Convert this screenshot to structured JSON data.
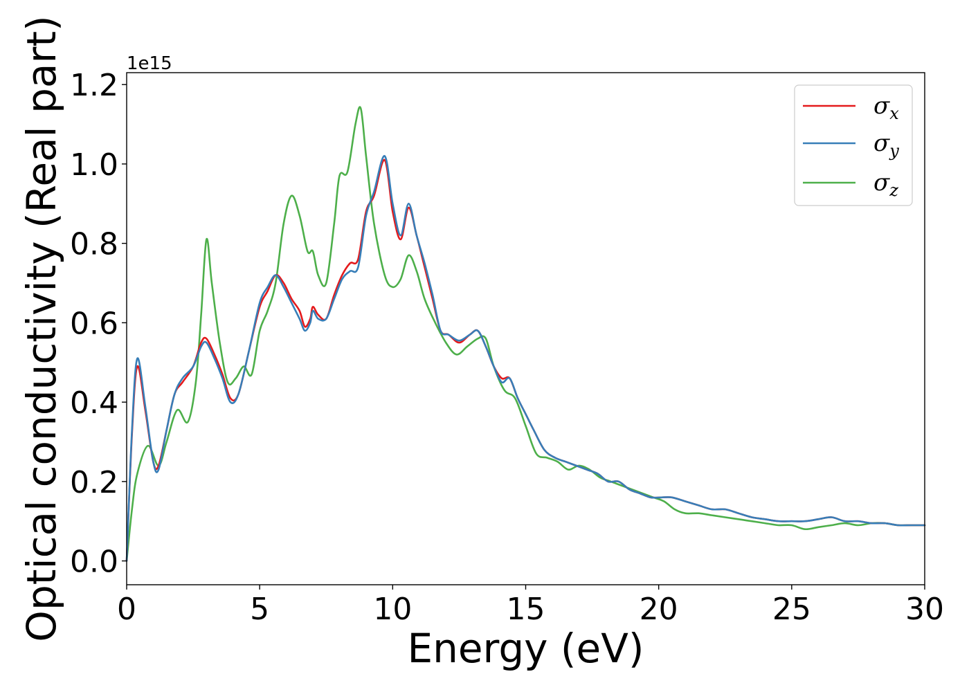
{
  "chart_data": {
    "type": "line",
    "title": "",
    "xlabel": "Energy (eV)",
    "ylabel": "Optical conductivity (Real part)",
    "y_offset_text": "1e15",
    "xlim": [
      0,
      30
    ],
    "ylim": [
      -0.06,
      1.23
    ],
    "x_ticks": [
      0,
      5,
      10,
      15,
      20,
      25,
      30
    ],
    "y_ticks": [
      0.0,
      0.2,
      0.4,
      0.6,
      0.8,
      1.0,
      1.2
    ],
    "x_tick_labels": [
      "0",
      "5",
      "10",
      "15",
      "20",
      "25",
      "30"
    ],
    "y_tick_labels": [
      "0.0",
      "0.2",
      "0.4",
      "0.6",
      "0.8",
      "1.0",
      "1.2"
    ],
    "grid": false,
    "legend_position": "top-right",
    "series": [
      {
        "name": "σx",
        "symbol": "σ",
        "subscript": "x",
        "color": "#e41a1c",
        "x": [
          0,
          0.2,
          0.4,
          0.7,
          1.0,
          1.2,
          1.5,
          1.8,
          2.1,
          2.5,
          2.8,
          3.0,
          3.3,
          3.6,
          3.9,
          4.2,
          4.6,
          5.0,
          5.3,
          5.6,
          5.9,
          6.2,
          6.5,
          6.7,
          6.9,
          7.0,
          7.2,
          7.5,
          7.8,
          8.1,
          8.4,
          8.7,
          9.0,
          9.3,
          9.7,
          10.0,
          10.3,
          10.6,
          10.9,
          11.2,
          11.5,
          11.8,
          12.1,
          12.5,
          12.9,
          13.2,
          13.5,
          13.8,
          14.1,
          14.4,
          14.7,
          15.0,
          15.3,
          15.7,
          16.1,
          16.5,
          16.9,
          17.3,
          17.7,
          18.1,
          18.5,
          18.9,
          19.3,
          19.7,
          20.1,
          20.5,
          21.0,
          21.5,
          22.0,
          22.5,
          23.0,
          23.5,
          24.0,
          24.5,
          25.0,
          25.5,
          26.0,
          26.5,
          27.0,
          27.5,
          28.0,
          28.5,
          29.0,
          29.5,
          30.0
        ],
        "values": [
          0.0,
          0.32,
          0.49,
          0.38,
          0.25,
          0.24,
          0.33,
          0.42,
          0.45,
          0.49,
          0.55,
          0.56,
          0.52,
          0.47,
          0.41,
          0.42,
          0.53,
          0.64,
          0.68,
          0.72,
          0.7,
          0.66,
          0.63,
          0.59,
          0.61,
          0.64,
          0.62,
          0.61,
          0.67,
          0.72,
          0.75,
          0.76,
          0.88,
          0.92,
          1.01,
          0.88,
          0.81,
          0.89,
          0.82,
          0.74,
          0.66,
          0.58,
          0.57,
          0.55,
          0.57,
          0.58,
          0.54,
          0.49,
          0.46,
          0.46,
          0.41,
          0.37,
          0.33,
          0.28,
          0.26,
          0.25,
          0.24,
          0.23,
          0.22,
          0.2,
          0.2,
          0.18,
          0.17,
          0.16,
          0.16,
          0.16,
          0.15,
          0.14,
          0.13,
          0.13,
          0.12,
          0.11,
          0.105,
          0.1,
          0.1,
          0.1,
          0.105,
          0.11,
          0.1,
          0.1,
          0.095,
          0.095,
          0.09,
          0.09,
          0.09
        ]
      },
      {
        "name": "σy",
        "symbol": "σ",
        "subscript": "y",
        "color": "#377eb8",
        "x": [
          0,
          0.2,
          0.4,
          0.7,
          1.0,
          1.2,
          1.5,
          1.8,
          2.1,
          2.5,
          2.8,
          3.0,
          3.3,
          3.6,
          3.9,
          4.2,
          4.6,
          5.0,
          5.3,
          5.6,
          5.9,
          6.2,
          6.5,
          6.7,
          6.9,
          7.0,
          7.2,
          7.5,
          7.8,
          8.1,
          8.4,
          8.7,
          9.0,
          9.3,
          9.7,
          10.0,
          10.3,
          10.6,
          10.9,
          11.2,
          11.5,
          11.8,
          12.1,
          12.5,
          12.9,
          13.2,
          13.5,
          13.8,
          14.1,
          14.4,
          14.7,
          15.0,
          15.3,
          15.7,
          16.1,
          16.5,
          16.9,
          17.3,
          17.7,
          18.1,
          18.5,
          18.9,
          19.3,
          19.7,
          20.1,
          20.5,
          21.0,
          21.5,
          22.0,
          22.5,
          23.0,
          23.5,
          24.0,
          24.5,
          25.0,
          25.5,
          26.0,
          26.5,
          27.0,
          27.5,
          28.0,
          28.5,
          29.0,
          29.5,
          30.0
        ],
        "values": [
          0.0,
          0.33,
          0.51,
          0.39,
          0.25,
          0.23,
          0.33,
          0.42,
          0.46,
          0.49,
          0.54,
          0.55,
          0.51,
          0.46,
          0.4,
          0.42,
          0.53,
          0.65,
          0.69,
          0.72,
          0.69,
          0.65,
          0.61,
          0.58,
          0.6,
          0.63,
          0.61,
          0.61,
          0.66,
          0.71,
          0.73,
          0.74,
          0.87,
          0.93,
          1.02,
          0.9,
          0.82,
          0.9,
          0.82,
          0.75,
          0.67,
          0.58,
          0.57,
          0.555,
          0.57,
          0.58,
          0.54,
          0.49,
          0.45,
          0.46,
          0.41,
          0.37,
          0.33,
          0.28,
          0.26,
          0.25,
          0.24,
          0.23,
          0.22,
          0.2,
          0.2,
          0.18,
          0.17,
          0.16,
          0.16,
          0.16,
          0.15,
          0.14,
          0.13,
          0.13,
          0.12,
          0.11,
          0.105,
          0.1,
          0.1,
          0.1,
          0.105,
          0.11,
          0.1,
          0.1,
          0.095,
          0.095,
          0.09,
          0.09,
          0.09
        ]
      },
      {
        "name": "σz",
        "symbol": "σ",
        "subscript": "z",
        "color": "#4daf4a",
        "x": [
          0,
          0.2,
          0.4,
          0.8,
          1.2,
          1.5,
          1.9,
          2.3,
          2.6,
          2.8,
          3.0,
          3.2,
          3.5,
          3.8,
          4.1,
          4.4,
          4.7,
          5.0,
          5.3,
          5.6,
          5.9,
          6.2,
          6.5,
          6.8,
          7.0,
          7.2,
          7.5,
          7.8,
          8.0,
          8.3,
          8.6,
          8.8,
          9.0,
          9.3,
          9.7,
          10.0,
          10.3,
          10.6,
          10.9,
          11.2,
          11.6,
          12.0,
          12.4,
          12.8,
          13.2,
          13.5,
          13.8,
          14.2,
          14.6,
          15.0,
          15.4,
          15.8,
          16.2,
          16.6,
          17.0,
          17.4,
          17.8,
          18.2,
          18.6,
          19.0,
          19.4,
          19.8,
          20.2,
          20.6,
          21.0,
          21.5,
          22.0,
          22.5,
          23.0,
          23.5,
          24.0,
          24.5,
          25.0,
          25.5,
          26.0,
          26.5,
          27.0,
          27.5,
          28.0,
          28.5,
          29.0,
          29.5,
          30.0
        ],
        "values": [
          0.0,
          0.13,
          0.22,
          0.29,
          0.24,
          0.3,
          0.38,
          0.35,
          0.45,
          0.62,
          0.81,
          0.7,
          0.55,
          0.45,
          0.46,
          0.49,
          0.47,
          0.58,
          0.63,
          0.7,
          0.85,
          0.92,
          0.87,
          0.78,
          0.78,
          0.72,
          0.7,
          0.85,
          0.97,
          0.98,
          1.1,
          1.14,
          1.02,
          0.85,
          0.72,
          0.69,
          0.71,
          0.77,
          0.73,
          0.66,
          0.6,
          0.55,
          0.52,
          0.54,
          0.56,
          0.56,
          0.49,
          0.43,
          0.41,
          0.34,
          0.27,
          0.26,
          0.25,
          0.23,
          0.24,
          0.23,
          0.21,
          0.2,
          0.19,
          0.18,
          0.17,
          0.16,
          0.15,
          0.13,
          0.12,
          0.12,
          0.115,
          0.11,
          0.105,
          0.1,
          0.095,
          0.09,
          0.09,
          0.08,
          0.085,
          0.09,
          0.095,
          0.09,
          0.095,
          0.095,
          0.09,
          0.09,
          0.09
        ]
      }
    ]
  }
}
